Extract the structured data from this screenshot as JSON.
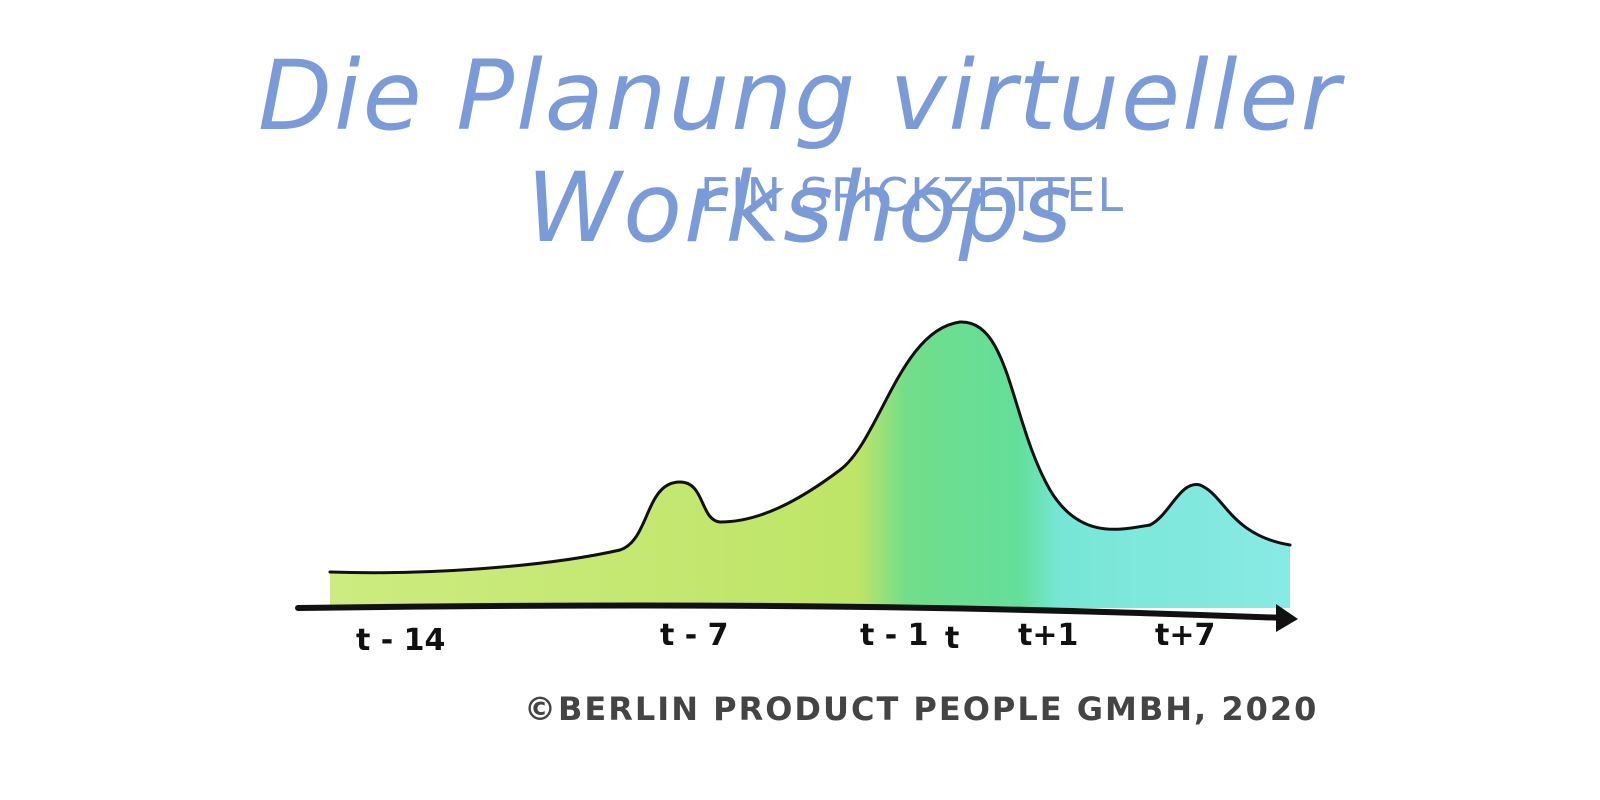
{
  "header": {
    "title": "Die Planung virtueller Workshops",
    "subtitle": "EIN SPICKZETTEL"
  },
  "timeline": {
    "labels": [
      {
        "id": "t-minus-14",
        "text": "t - 14"
      },
      {
        "id": "t-minus-7",
        "text": "t - 7"
      },
      {
        "id": "t-minus-1",
        "text": "t - 1"
      },
      {
        "id": "t",
        "text": "t"
      },
      {
        "id": "t-plus-1",
        "text": "t+1"
      },
      {
        "id": "t-plus-7",
        "text": "t+7"
      }
    ],
    "colors": {
      "early": "#b9e25a",
      "peak": "#3fd87a",
      "after": "#5fe0d8",
      "outline": "#111111"
    }
  },
  "footer": {
    "copyright": "©BERLIN PRODUCT PEOPLE GMBH, 2020"
  }
}
